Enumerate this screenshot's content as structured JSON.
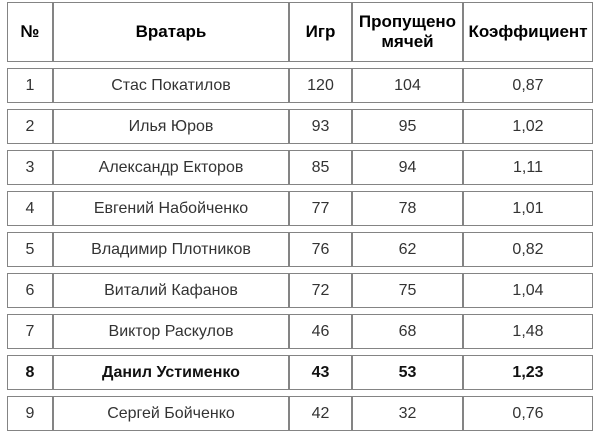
{
  "chart_data": {
    "type": "table",
    "columns": [
      "№",
      "Вратарь",
      "Игр",
      "Пропущено мячей",
      "Коэффициент"
    ],
    "rows": [
      [
        "1",
        "Стас Покатилов",
        "120",
        "104",
        "0,87"
      ],
      [
        "2",
        "Илья Юров",
        "93",
        "95",
        "1,02"
      ],
      [
        "3",
        "Александр Екторов",
        "85",
        "94",
        "1,11"
      ],
      [
        "4",
        "Евгений Набойченко",
        "77",
        "78",
        "1,01"
      ],
      [
        "5",
        "Владимир Плотников",
        "76",
        "62",
        "0,82"
      ],
      [
        "6",
        "Виталий Кафанов",
        "72",
        "75",
        "1,04"
      ],
      [
        "7",
        "Виктор Раскулов",
        "46",
        "68",
        "1,48"
      ],
      [
        "8",
        "Данил Устименко",
        "43",
        "53",
        "1,23"
      ],
      [
        "9",
        "Сергей Бойченко",
        "42",
        "32",
        "0,76"
      ]
    ],
    "highlighted_row": {
      "index": 7,
      "style": "bold"
    },
    "layout": {
      "grid": "separated-rows",
      "text_align": "center"
    }
  },
  "colors": {
    "border": "#848484",
    "text": "#333333",
    "header_text": "#000000",
    "bold_row_text": "#111111",
    "background": "#ffffff"
  }
}
